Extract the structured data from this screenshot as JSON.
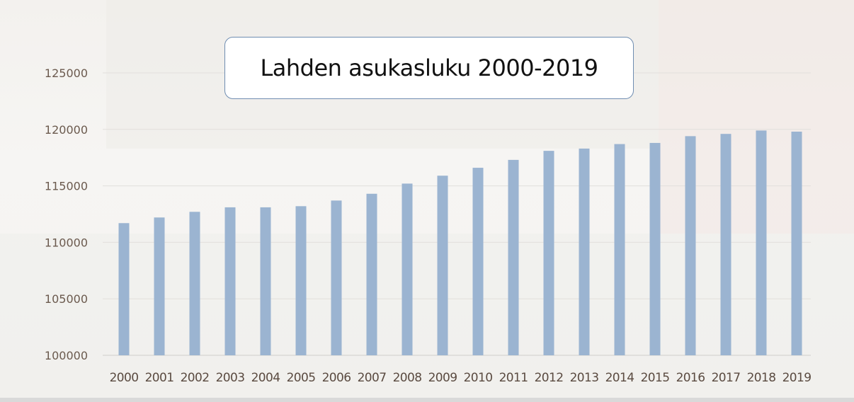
{
  "chart_data": {
    "type": "bar",
    "title": "Lahden asukasluku 2000-2019",
    "xlabel": "",
    "ylabel": "",
    "categories": [
      "2000",
      "2001",
      "2002",
      "2003",
      "2004",
      "2005",
      "2006",
      "2007",
      "2008",
      "2009",
      "2010",
      "2011",
      "2012",
      "2013",
      "2014",
      "2015",
      "2016",
      "2017",
      "2018",
      "2019"
    ],
    "values": [
      111700,
      112200,
      112700,
      113100,
      113100,
      113200,
      113700,
      114300,
      115200,
      115900,
      116600,
      117300,
      118100,
      118300,
      118700,
      118800,
      119400,
      119600,
      119900,
      119800
    ],
    "ylim": [
      100000,
      125000
    ],
    "yticks": [
      "100000",
      "105000",
      "110000",
      "115000",
      "120000",
      "125000"
    ],
    "grid": true,
    "legend": "none",
    "bar_color": "#9bb4d1"
  }
}
